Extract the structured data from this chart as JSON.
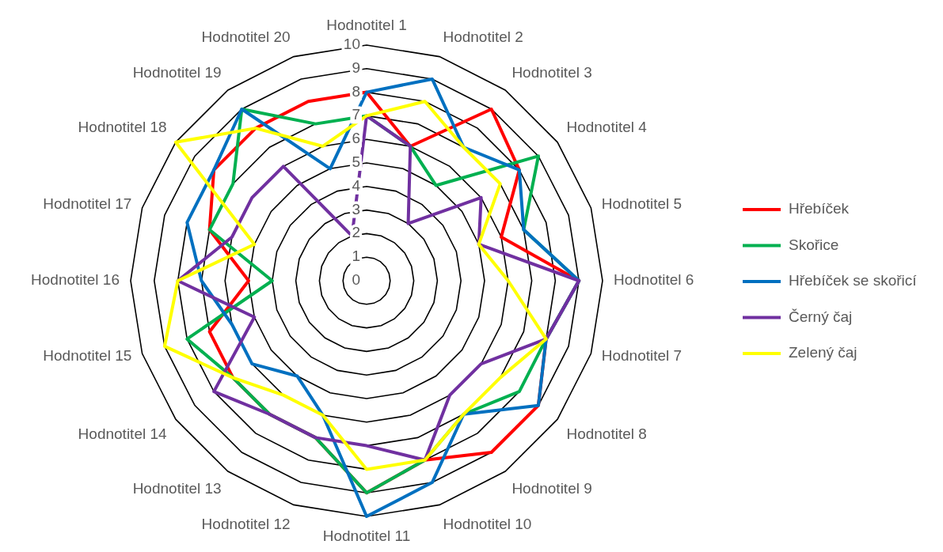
{
  "chart_data": {
    "type": "radar",
    "categories": [
      "Hodnotitel 1",
      "Hodnotitel 2",
      "Hodnotitel 3",
      "Hodnotitel 4",
      "Hodnotitel 5",
      "Hodnotitel 6",
      "Hodnotitel 7",
      "Hodnotitel 8",
      "Hodnotitel 9",
      "Hodnotitel 10",
      "Hodnotitel 11",
      "Hodnotitel 12",
      "Hodnotitel 13",
      "Hodnotitel 14",
      "Hodnotitel 15",
      "Hodnotitel 16",
      "Hodnotitel 17",
      "Hodnotitel 18",
      "Hodnotitel 19",
      "Hodnotitel 20"
    ],
    "series": [
      {
        "name": "Hřebíček",
        "color": "#ff0000",
        "values": [
          8,
          6,
          9,
          8,
          6,
          9,
          8,
          9,
          9,
          8,
          9,
          7,
          7,
          7,
          7,
          5,
          7,
          8,
          8,
          8
        ]
      },
      {
        "name": "Skořice",
        "color": "#00b050",
        "values": [
          7,
          6,
          5,
          9,
          7,
          9,
          8,
          8,
          7,
          8,
          9,
          7,
          7,
          7,
          8,
          4,
          7,
          7,
          9,
          7
        ]
      },
      {
        "name": "Hřebíček se skořicí",
        "color": "#0070c0",
        "values": [
          8,
          9,
          7,
          8,
          7,
          9,
          8,
          9,
          7,
          9,
          10,
          6,
          5,
          6,
          6,
          7,
          8,
          8,
          9,
          5
        ]
      },
      {
        "name": "Černý čaj",
        "color": "#7030a0",
        "values": [
          7,
          6,
          3,
          6,
          5,
          9,
          8,
          6,
          6,
          8,
          7,
          7,
          7,
          8,
          5,
          8,
          6,
          6,
          6,
          2
        ]
      },
      {
        "name": "Zelený čaj",
        "color": "#ffff00",
        "values": [
          7,
          8,
          7,
          7,
          5,
          6,
          8,
          7,
          7,
          8,
          8,
          6,
          6,
          7,
          9,
          8,
          5,
          10,
          8,
          6
        ]
      }
    ],
    "ylim": [
      0,
      10
    ],
    "yticks": [
      0,
      1,
      2,
      3,
      4,
      5,
      6,
      7,
      8,
      9,
      10
    ],
    "grid": true,
    "legend": "right"
  }
}
